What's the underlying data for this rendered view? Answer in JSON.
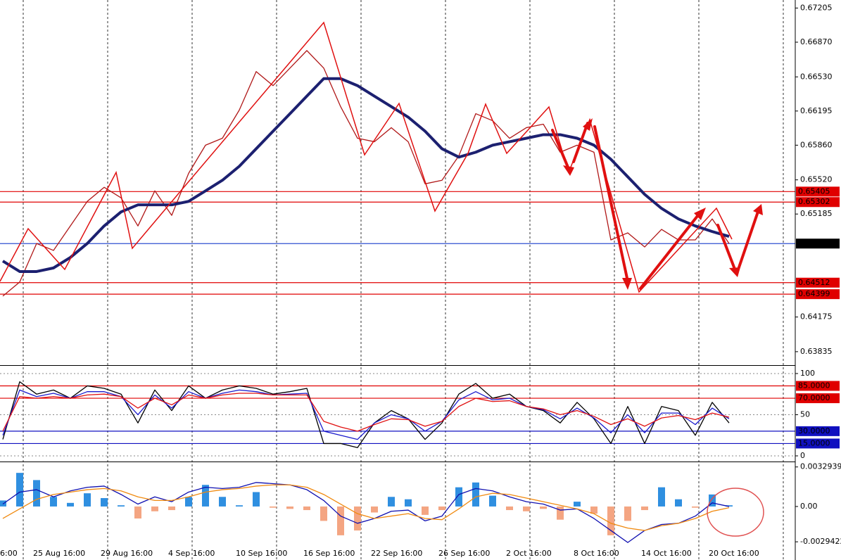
{
  "chart_data": [
    {
      "type": "line",
      "ylim": [
        0.6371,
        0.6727
      ],
      "yticks": [
        0.67205,
        {
          "value": 0.6687,
          "label": "0.66870"
        },
        {
          "value": 0.6653,
          "label": "0.66530"
        },
        0.66195,
        {
          "value": 0.6586,
          "label": "0.65860"
        },
        {
          "value": 0.6552,
          "label": "0.65520"
        },
        0.65185,
        0.64175,
        0.63835
      ],
      "series": [
        {
          "color": "#b01818",
          "values": [
            0.6438,
            0.64518,
            0.64896,
            0.64828,
            0.65068,
            0.65309,
            0.65447,
            0.65344,
            0.65068,
            0.65412,
            0.65172,
            0.65584,
            0.6586,
            0.65928,
            0.66204,
            0.66582,
            0.66444,
            0.66616,
            0.66788,
            0.66616,
            0.66238,
            0.65928,
            0.65894,
            0.66032,
            0.65894,
            0.65481,
            0.65516,
            0.65756,
            0.66169,
            0.661,
            0.65928,
            0.66032,
            0.66066,
            0.65791,
            0.6586,
            0.65791,
            0.64931,
            0.65,
            0.64862,
            0.65034,
            0.64931,
            0.64931,
            0.65137,
            0.64896
          ]
        },
        {
          "color": "#1c2070",
          "values": [
            0.64724,
            0.64621,
            0.64621,
            0.64656,
            0.64759,
            0.64896,
            0.65068,
            0.65206,
            0.65275,
            0.65275,
            0.65275,
            0.65309,
            0.65412,
            0.65516,
            0.65653,
            0.65825,
            0.65997,
            0.66169,
            0.66341,
            0.66513,
            0.66513,
            0.66444,
            0.66341,
            0.66238,
            0.66135,
            0.65997,
            0.65825,
            0.65743,
            0.65791,
            0.6586,
            0.65894,
            0.65928,
            0.65963,
            0.65963,
            0.65928,
            0.6586,
            0.65722,
            0.6555,
            0.65378,
            0.6524,
            0.65137,
            0.65068,
            0.65013,
            0.64965
          ]
        }
      ],
      "levels": [
        {
          "value": 0.65405,
          "color": "#e00000"
        },
        {
          "value": 0.65302,
          "color": "#e00000"
        },
        {
          "value": 0.64895,
          "color": "#3050d0",
          "badge": "#000000"
        },
        {
          "value": 0.64512,
          "color": "#e00000"
        },
        {
          "value": 0.64399,
          "color": "#e00000"
        }
      ]
    },
    {
      "type": "line",
      "ylim": [
        -6,
        108.5
      ],
      "yticks": [
        100,
        50,
        0
      ],
      "grid": true,
      "series": [
        {
          "color": "#000000",
          "values": [
            20,
            90,
            75,
            80,
            70,
            85,
            82,
            75,
            40,
            80,
            55,
            85,
            70,
            80,
            85,
            82,
            75,
            78,
            82,
            15,
            15,
            10,
            40,
            55,
            45,
            20,
            40,
            75,
            88,
            70,
            75,
            60,
            55,
            40,
            65,
            45,
            15,
            60,
            15,
            60,
            55,
            25,
            65,
            40
          ]
        },
        {
          "color": "#1a1acc",
          "values": [
            25,
            80,
            72,
            76,
            70,
            78,
            78,
            72,
            50,
            74,
            58,
            78,
            70,
            76,
            80,
            78,
            74,
            75,
            76,
            30,
            25,
            20,
            40,
            50,
            45,
            30,
            42,
            68,
            78,
            68,
            70,
            60,
            56,
            45,
            58,
            46,
            28,
            50,
            28,
            52,
            52,
            38,
            58,
            45
          ]
        },
        {
          "color": "#e01010",
          "values": [
            30,
            72,
            70,
            72,
            70,
            74,
            75,
            72,
            58,
            70,
            62,
            74,
            70,
            74,
            76,
            76,
            74,
            74,
            74,
            42,
            35,
            30,
            38,
            45,
            44,
            36,
            42,
            60,
            70,
            66,
            67,
            60,
            57,
            50,
            55,
            48,
            38,
            45,
            36,
            46,
            49,
            44,
            52,
            47
          ]
        }
      ],
      "levels": [
        {
          "value": 85,
          "label": "85.0000",
          "color": "#e00000"
        },
        {
          "value": 70,
          "label": "70.0000",
          "color": "#e00000"
        },
        {
          "value": 30,
          "label": "30.0000",
          "color": "#1010c0"
        },
        {
          "value": 15,
          "label": "15.0000",
          "color": "#1010c0"
        }
      ]
    },
    {
      "type": "bar",
      "ylim": [
        -0.0044,
        0.00363
      ],
      "yticks": [
        0.0032939,
        {
          "value": 0,
          "label": "0.00"
        },
        -0.0029422
      ],
      "color": "#2f8fe0",
      "negative_color": "#f4a582",
      "categories": [
        "6:00",
        null,
        "25 Aug 16:00",
        null,
        null,
        null,
        "29 Aug 16:00",
        null,
        null,
        null,
        "4 Sep 16:00",
        null,
        null,
        null,
        "10 Sep 16:00",
        null,
        null,
        null,
        "16 Sep 16:00",
        null,
        null,
        null,
        "22 Sep 16:00",
        null,
        null,
        null,
        "26 Sep 16:00",
        null,
        null,
        null,
        "2 Oct 16:00",
        null,
        null,
        null,
        "8 Oct 16:00",
        null,
        null,
        null,
        "14 Oct 16:00",
        null,
        null,
        null,
        "20 Oct 16:00",
        null
      ],
      "values": [
        0.0005,
        0.0028,
        0.0022,
        0.0008,
        0.0003,
        0.0011,
        0.0007,
        0.0001,
        -0.001,
        -0.0004,
        -0.0003,
        0.0008,
        0.0018,
        0.0008,
        0.0001,
        0.0012,
        -0.0001,
        -0.0002,
        -0.0003,
        -0.0012,
        -0.0024,
        -0.002,
        -0.0005,
        0.0008,
        0.0006,
        -0.0007,
        -0.0003,
        0.0016,
        0.002,
        0.0009,
        -0.0003,
        -0.0004,
        -0.0002,
        -0.0011,
        0.0004,
        -0.0006,
        -0.0024,
        -0.0012,
        -0.0003,
        0.0016,
        0.0006,
        -0.0001,
        0.001,
        0.0001
      ],
      "series": [
        {
          "color": "#1010b0",
          "values": [
            0.0002,
            0.0012,
            0.0014,
            0.0008,
            0.0013,
            0.0016,
            0.0017,
            0.001,
            0.0002,
            0.0008,
            0.0004,
            0.0012,
            0.0016,
            0.0015,
            0.0016,
            0.002,
            0.0019,
            0.0018,
            0.0014,
            0.0005,
            -0.0008,
            -0.0014,
            -0.001,
            -0.0004,
            -0.0003,
            -0.0012,
            -0.0008,
            0.001,
            0.0015,
            0.0013,
            0.0008,
            0.0004,
            0.0002,
            -0.0003,
            -0.0002,
            -0.001,
            -0.002,
            -0.003,
            -0.002,
            -0.0015,
            -0.0014,
            -0.0008,
            0.0003,
            0
          ]
        },
        {
          "color": "#f08a10",
          "values": [
            -0.001,
            -0.0002,
            0.0006,
            0.001,
            0.0012,
            0.0014,
            0.0015,
            0.0013,
            0.0008,
            0.0005,
            0.0005,
            0.0008,
            0.0012,
            0.0014,
            0.0015,
            0.0017,
            0.0018,
            0.0018,
            0.0016,
            0.001,
            0.0002,
            -0.0006,
            -0.001,
            -0.0008,
            -0.0006,
            -0.001,
            -0.0011,
            -0.0002,
            0.0008,
            0.0011,
            0.001,
            0.0007,
            0.0004,
            0.0001,
            -0.0002,
            -0.0006,
            -0.0014,
            -0.0018,
            -0.002,
            -0.0016,
            -0.0014,
            -0.001,
            -0.0004,
            -0.0001
          ]
        }
      ]
    }
  ]
}
